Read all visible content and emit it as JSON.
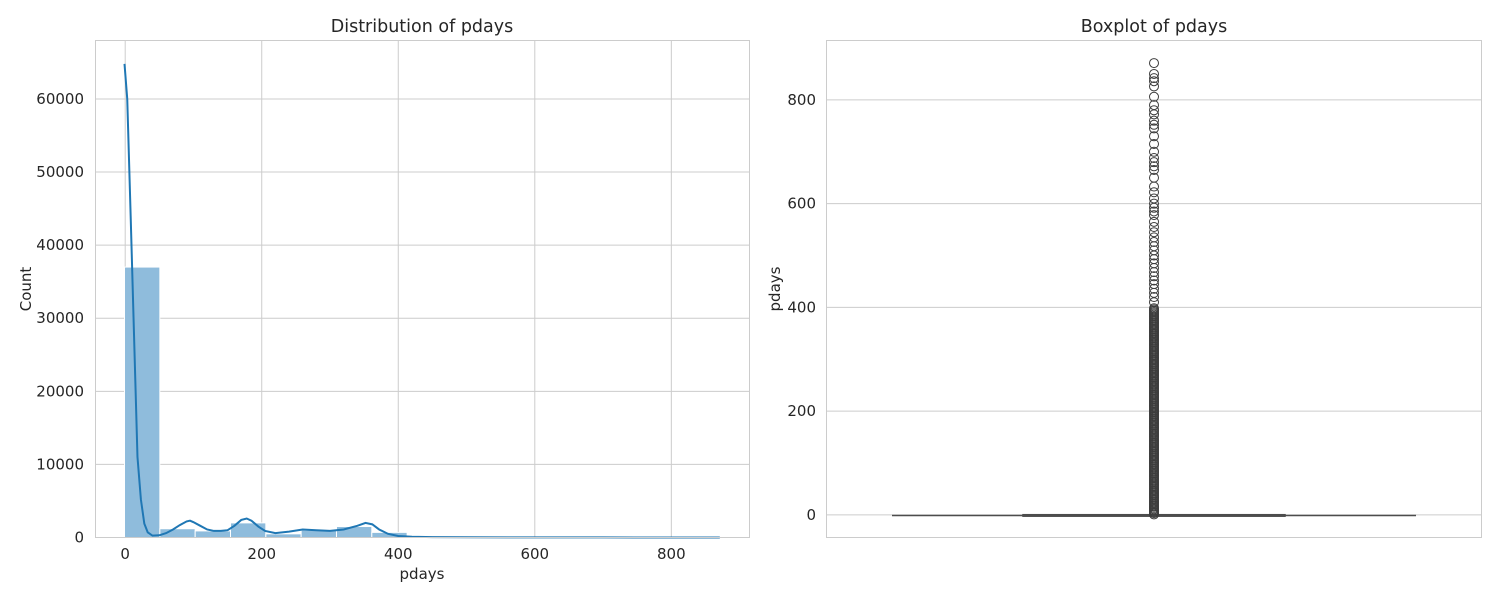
{
  "chart_data": [
    {
      "type": "bar",
      "title": "Distribution of pdays",
      "xlabel": "pdays",
      "ylabel": "Count",
      "xlim": [
        -43.5,
        914.5
      ],
      "ylim": [
        0,
        68000
      ],
      "xticks": [
        0,
        200,
        400,
        600,
        800
      ],
      "yticks": [
        0,
        10000,
        20000,
        30000,
        40000,
        50000,
        60000
      ],
      "grid": true,
      "bar_color": "#8fbcdc",
      "kde_color": "#1f77b4",
      "bins": [
        {
          "x0": -1,
          "x1": 50.75,
          "count": 37000
        },
        {
          "x0": 50.75,
          "x1": 102.5,
          "count": 1200
        },
        {
          "x0": 102.5,
          "x1": 154.25,
          "count": 900
        },
        {
          "x0": 154.25,
          "x1": 206,
          "count": 2000
        },
        {
          "x0": 206,
          "x1": 257.75,
          "count": 500
        },
        {
          "x0": 257.75,
          "x1": 309.5,
          "count": 1000
        },
        {
          "x0": 309.5,
          "x1": 361.25,
          "count": 1500
        },
        {
          "x0": 361.25,
          "x1": 413,
          "count": 700
        },
        {
          "x0": 413,
          "x1": 464.75,
          "count": 150
        },
        {
          "x0": 464.75,
          "x1": 516.5,
          "count": 100
        },
        {
          "x0": 516.5,
          "x1": 568.25,
          "count": 60
        },
        {
          "x0": 568.25,
          "x1": 620,
          "count": 50
        },
        {
          "x0": 620,
          "x1": 671.75,
          "count": 30
        },
        {
          "x0": 671.75,
          "x1": 723.5,
          "count": 25
        },
        {
          "x0": 723.5,
          "x1": 775.25,
          "count": 25
        },
        {
          "x0": 775.25,
          "x1": 827,
          "count": 15
        },
        {
          "x0": 827,
          "x1": 871,
          "count": 10
        }
      ],
      "kde": {
        "x": [
          -1,
          3,
          8,
          13,
          18,
          23,
          28,
          33,
          40,
          50,
          60,
          70,
          80,
          90,
          95,
          100,
          110,
          120,
          130,
          140,
          150,
          160,
          170,
          178,
          185,
          195,
          205,
          220,
          240,
          260,
          280,
          300,
          320,
          340,
          352,
          362,
          372,
          385,
          400,
          420,
          450,
          500,
          600,
          700,
          800,
          871
        ],
        "y": [
          64800,
          60000,
          44000,
          27500,
          11000,
          5200,
          1900,
          700,
          250,
          300,
          600,
          1100,
          1700,
          2200,
          2300,
          2100,
          1600,
          1100,
          900,
          900,
          1000,
          1600,
          2400,
          2600,
          2300,
          1500,
          900,
          600,
          800,
          1100,
          1000,
          900,
          1100,
          1600,
          2000,
          1800,
          1100,
          500,
          200,
          100,
          50,
          30,
          20,
          10,
          5,
          3
        ]
      }
    },
    {
      "type": "box",
      "title": "Boxplot of pdays",
      "ylabel": "pdays",
      "ylim": [
        -43.5,
        914.5
      ],
      "yticks": [
        0,
        200,
        400,
        600,
        800
      ],
      "grid": true,
      "box": {
        "min": -1,
        "q1": -1,
        "median": -1,
        "q3": -1,
        "max": -1
      },
      "box_color": "#4d4d4d",
      "outliers_dense_range": [
        1,
        400
      ],
      "outliers": [
        410,
        420,
        428,
        436,
        445,
        452,
        460,
        468,
        476,
        485,
        493,
        500,
        510,
        518,
        526,
        535,
        545,
        555,
        565,
        578,
        585,
        592,
        600,
        610,
        622,
        633,
        650,
        665,
        672,
        680,
        688,
        700,
        715,
        730,
        745,
        752,
        760,
        772,
        780,
        790,
        806,
        826,
        836,
        842,
        850,
        871
      ]
    }
  ]
}
